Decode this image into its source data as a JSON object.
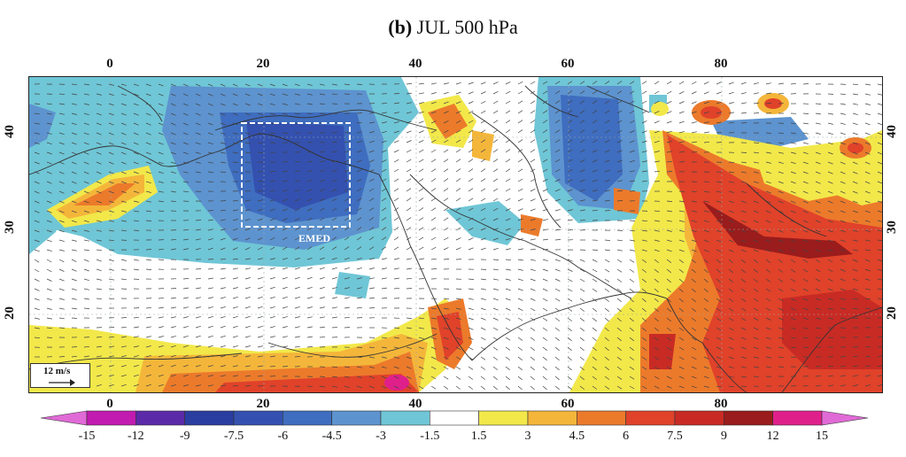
{
  "title": {
    "panel": "(b)",
    "text": "JUL 500 hPa"
  },
  "map": {
    "lon_ticks_top": [
      "0",
      "20",
      "40",
      "60",
      "80"
    ],
    "lon_ticks_bottom": [
      "0",
      "20",
      "40",
      "60",
      "80"
    ],
    "lat_ticks_left": [
      "40",
      "30",
      "20"
    ],
    "lat_ticks_right": [
      "40",
      "30",
      "20"
    ],
    "lon_range": [
      -10,
      100
    ],
    "lat_range": [
      10,
      46
    ],
    "region_box": {
      "label": "EMED",
      "lon": [
        17,
        31
      ],
      "lat": [
        30,
        41
      ]
    },
    "reference_vector": {
      "label": "12 m/s"
    }
  },
  "colorbar": {
    "labels": [
      "-15",
      "-12",
      "-9",
      "-7.5",
      "-6",
      "-4.5",
      "-3",
      "-1.5",
      "1.5",
      "3",
      "4.5",
      "6",
      "7.5",
      "9",
      "12",
      "15"
    ],
    "colors": [
      "#c21bb0",
      "#5b2aa8",
      "#2a3ea0",
      "#3451b0",
      "#3f6dbf",
      "#5d93cf",
      "#6fc6d6",
      "#ffffff",
      "#f2e84a",
      "#f4b63a",
      "#ec7a2b",
      "#e0422a",
      "#c82b24",
      "#9a1c1c",
      "#e0208a"
    ]
  }
}
